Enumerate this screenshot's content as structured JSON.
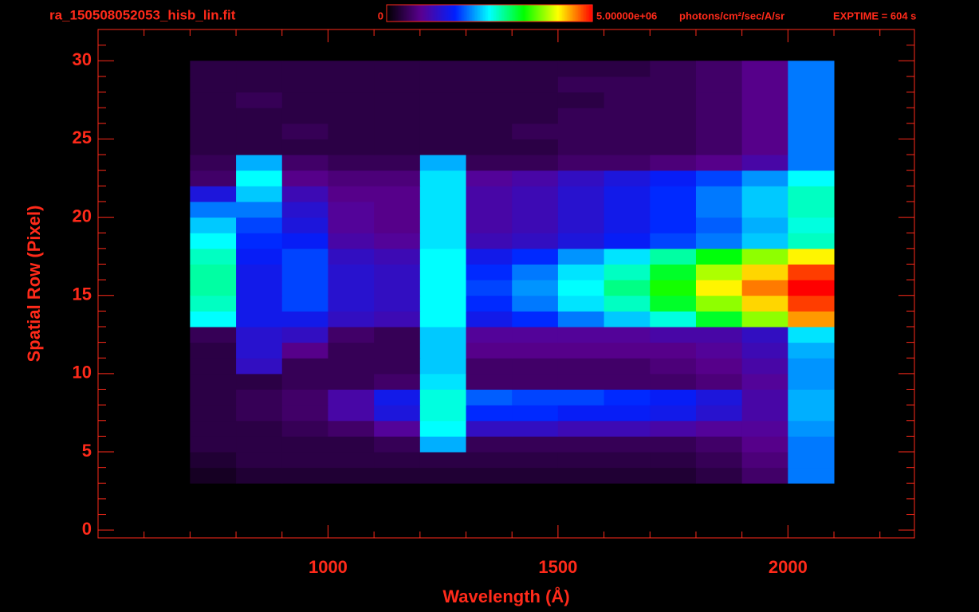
{
  "chart_data": {
    "type": "heatmap",
    "title": "ra_150508052053_hisb_lin.fit",
    "exposure_label": "EXPTIME = 604 s",
    "x_label": "Wavelength (Å)",
    "y_label": "Spatial Row (Pixel)",
    "axis_color": "#ff2a1a",
    "colorbar": {
      "lim": [
        0,
        5000000
      ],
      "ticks": [
        0,
        {
          "value": 5000000,
          "label": "5.00000e+06"
        }
      ],
      "unit": "photons/cm²/sec/A/sr"
    },
    "colormap": [
      "#000000",
      "#5a0090",
      "#0020ff",
      "#00ffff",
      "#00ff00",
      "#ffff00",
      "#ff0000"
    ],
    "xlim": [
      500,
      2275
    ],
    "ylim": [
      -0.5,
      32
    ],
    "xticks": [
      1000,
      1500,
      2000
    ],
    "xminorticks": [
      600,
      700,
      800,
      900,
      1100,
      1200,
      1300,
      1400,
      1600,
      1700,
      1800,
      1900,
      2100,
      2200
    ],
    "yticks": [
      0,
      5,
      10,
      15,
      20,
      25,
      30
    ],
    "yminorticks": [
      1,
      2,
      3,
      4,
      6,
      7,
      8,
      9,
      11,
      12,
      13,
      14,
      16,
      17,
      18,
      19,
      21,
      22,
      23,
      24,
      26,
      27,
      28,
      29,
      31
    ],
    "xbins": [
      700,
      800,
      900,
      1000,
      1100,
      1200,
      1300,
      1400,
      1500,
      1600,
      1700,
      1800,
      1900,
      2000,
      2100
    ],
    "ybins": [
      3,
      4,
      5,
      6,
      7,
      8,
      9,
      10,
      11,
      12,
      13,
      14,
      15,
      16,
      17,
      18,
      19,
      20,
      21,
      22,
      23,
      24,
      25,
      26,
      27,
      28,
      29,
      30
    ],
    "values": [
      [
        200000.0,
        300000.0,
        300000.0,
        300000.0,
        300000.0,
        300000.0,
        300000.0,
        300000.0,
        300000.0,
        300000.0,
        300000.0,
        400000.0,
        600000.0,
        2000000.0
      ],
      [
        300000.0,
        400000.0,
        400000.0,
        400000.0,
        400000.0,
        400000.0,
        400000.0,
        400000.0,
        400000.0,
        400000.0,
        400000.0,
        500000.0,
        700000.0,
        2000000.0
      ],
      [
        400000.0,
        400000.0,
        400000.0,
        400000.0,
        500000.0,
        2200000.0,
        500000.0,
        500000.0,
        500000.0,
        500000.0,
        500000.0,
        600000.0,
        800000.0,
        2000000.0
      ],
      [
        400000.0,
        400000.0,
        500000.0,
        600000.0,
        900000.0,
        2500000.0,
        1200000.0,
        1200000.0,
        1100000.0,
        1100000.0,
        1000000.0,
        900000.0,
        900000.0,
        2100000.0
      ],
      [
        400000.0,
        500000.0,
        600000.0,
        1000000.0,
        1400000.0,
        2600000.0,
        1700000.0,
        1700000.0,
        1600000.0,
        1600000.0,
        1500000.0,
        1300000.0,
        1000000.0,
        2200000.0
      ],
      [
        400000.0,
        500000.0,
        600000.0,
        1000000.0,
        1500000.0,
        2600000.0,
        1900000.0,
        1800000.0,
        1800000.0,
        1700000.0,
        1600000.0,
        1400000.0,
        1000000.0,
        2200000.0
      ],
      [
        400000.0,
        400000.0,
        500000.0,
        500000.0,
        600000.0,
        2400000.0,
        600000.0,
        600000.0,
        600000.0,
        600000.0,
        600000.0,
        700000.0,
        900000.0,
        2100000.0
      ],
      [
        400000.0,
        1200000.0,
        500000.0,
        500000.0,
        500000.0,
        2300000.0,
        600000.0,
        600000.0,
        600000.0,
        600000.0,
        700000.0,
        800000.0,
        1000000.0,
        2100000.0
      ],
      [
        400000.0,
        1300000.0,
        800000.0,
        500000.0,
        500000.0,
        2300000.0,
        800000.0,
        800000.0,
        800000.0,
        800000.0,
        800000.0,
        900000.0,
        1100000.0,
        2200000.0
      ],
      [
        500000.0,
        1300000.0,
        1200000.0,
        600000.0,
        500000.0,
        2300000.0,
        900000.0,
        900000.0,
        900000.0,
        900000.0,
        1000000.0,
        1000000.0,
        1200000.0,
        2400000.0
      ],
      [
        2500000.0,
        1500000.0,
        1500000.0,
        1200000.0,
        1100000.0,
        2500000.0,
        1500000.0,
        1700000.0,
        2000000.0,
        2300000.0,
        2600000.0,
        3200000.0,
        3800000.0,
        4500000.0
      ],
      [
        2700000.0,
        1500000.0,
        1800000.0,
        1300000.0,
        1200000.0,
        2500000.0,
        1700000.0,
        2000000.0,
        2400000.0,
        2700000.0,
        3200000.0,
        3800000.0,
        4300000.0,
        4800000.0
      ],
      [
        2800000.0,
        1500000.0,
        1800000.0,
        1300000.0,
        1200000.0,
        2500000.0,
        1800000.0,
        2100000.0,
        2500000.0,
        2900000.0,
        3400000.0,
        4200000.0,
        4600000.0,
        5000000.0
      ],
      [
        2800000.0,
        1500000.0,
        1800000.0,
        1300000.0,
        1200000.0,
        2500000.0,
        1700000.0,
        2000000.0,
        2400000.0,
        2700000.0,
        3200000.0,
        3900000.0,
        4300000.0,
        4800000.0
      ],
      [
        2700000.0,
        1600000.0,
        1800000.0,
        1200000.0,
        1100000.0,
        2500000.0,
        1500000.0,
        1700000.0,
        2100000.0,
        2400000.0,
        2800000.0,
        3300000.0,
        3800000.0,
        4200000.0
      ],
      [
        2500000.0,
        1700000.0,
        1600000.0,
        1000000.0,
        900000.0,
        2400000.0,
        1100000.0,
        1200000.0,
        1400000.0,
        1600000.0,
        1800000.0,
        2000000.0,
        2300000.0,
        2700000.0
      ],
      [
        2300000.0,
        1800000.0,
        1400000.0,
        900000.0,
        800000.0,
        2400000.0,
        1000000.0,
        1100000.0,
        1300000.0,
        1500000.0,
        1700000.0,
        1900000.0,
        2200000.0,
        2600000.0
      ],
      [
        2000000.0,
        2000000.0,
        1300000.0,
        900000.0,
        800000.0,
        2400000.0,
        1000000.0,
        1100000.0,
        1300000.0,
        1500000.0,
        1700000.0,
        2000000.0,
        2300000.0,
        2700000.0
      ],
      [
        1400000.0,
        2300000.0,
        1100000.0,
        800000.0,
        800000.0,
        2400000.0,
        1000000.0,
        1100000.0,
        1300000.0,
        1500000.0,
        1700000.0,
        2000000.0,
        2300000.0,
        2700000.0
      ],
      [
        600000.0,
        2500000.0,
        800000.0,
        700000.0,
        700000.0,
        2400000.0,
        900000.0,
        1000000.0,
        1200000.0,
        1400000.0,
        1600000.0,
        1800000.0,
        2100000.0,
        2500000.0
      ],
      [
        500000.0,
        2200000.0,
        600000.0,
        500000.0,
        500000.0,
        2200000.0,
        500000.0,
        500000.0,
        600000.0,
        600000.0,
        700000.0,
        800000.0,
        1000000.0,
        2000000.0
      ],
      [
        400000.0,
        400000.0,
        400000.0,
        400000.0,
        400000.0,
        400000.0,
        400000.0,
        400000.0,
        500000.0,
        500000.0,
        500000.0,
        600000.0,
        800000.0,
        2000000.0
      ],
      [
        400000.0,
        400000.0,
        500000.0,
        400000.0,
        400000.0,
        400000.0,
        400000.0,
        500000.0,
        500000.0,
        500000.0,
        500000.0,
        600000.0,
        800000.0,
        2000000.0
      ],
      [
        400000.0,
        400000.0,
        400000.0,
        400000.0,
        400000.0,
        400000.0,
        400000.0,
        400000.0,
        500000.0,
        500000.0,
        500000.0,
        600000.0,
        800000.0,
        2000000.0
      ],
      [
        400000.0,
        500000.0,
        400000.0,
        400000.0,
        400000.0,
        400000.0,
        400000.0,
        400000.0,
        400000.0,
        500000.0,
        500000.0,
        600000.0,
        800000.0,
        2000000.0
      ],
      [
        400000.0,
        400000.0,
        400000.0,
        400000.0,
        400000.0,
        400000.0,
        400000.0,
        400000.0,
        500000.0,
        500000.0,
        500000.0,
        600000.0,
        800000.0,
        2000000.0
      ],
      [
        400000.0,
        400000.0,
        400000.0,
        400000.0,
        400000.0,
        400000.0,
        400000.0,
        400000.0,
        400000.0,
        400000.0,
        500000.0,
        600000.0,
        800000.0,
        2000000.0
      ]
    ]
  }
}
